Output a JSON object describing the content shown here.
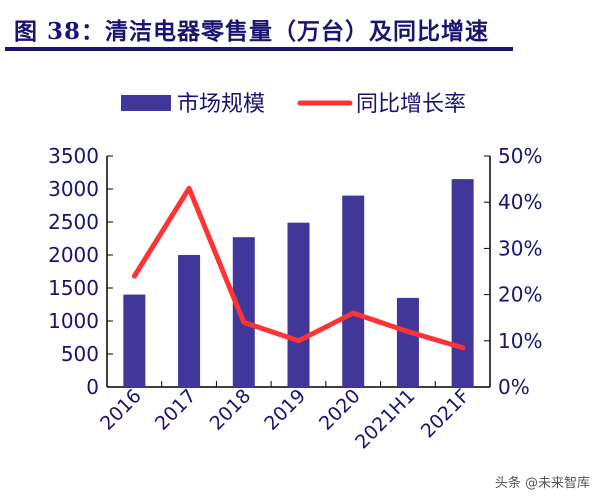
{
  "title": "图 38：清洁电器零售量（万台）及同比增速",
  "watermark": "头条 @未来智库",
  "chart_data": {
    "type": "bar+line",
    "categories": [
      "2016",
      "2017",
      "2018",
      "2019",
      "2020",
      "2021H1",
      "2021F"
    ],
    "series": [
      {
        "name": "市场规模",
        "type": "bar",
        "axis": "left",
        "color": "#41369a",
        "values": [
          1400,
          2000,
          2270,
          2490,
          2900,
          1350,
          3150
        ]
      },
      {
        "name": "同比增长率",
        "type": "line",
        "axis": "right",
        "color": "#ff3333",
        "values": [
          24,
          43,
          14,
          10,
          16,
          12,
          8.5
        ]
      }
    ],
    "yleft": {
      "range": [
        0,
        3500
      ],
      "ticks": [
        "0",
        "500",
        "1000",
        "1500",
        "2000",
        "2500",
        "3000",
        "3500"
      ]
    },
    "yright": {
      "range": [
        0,
        50
      ],
      "ticks": [
        "0%",
        "10%",
        "20%",
        "30%",
        "40%",
        "50%"
      ]
    },
    "legend": "top",
    "grid": false
  }
}
